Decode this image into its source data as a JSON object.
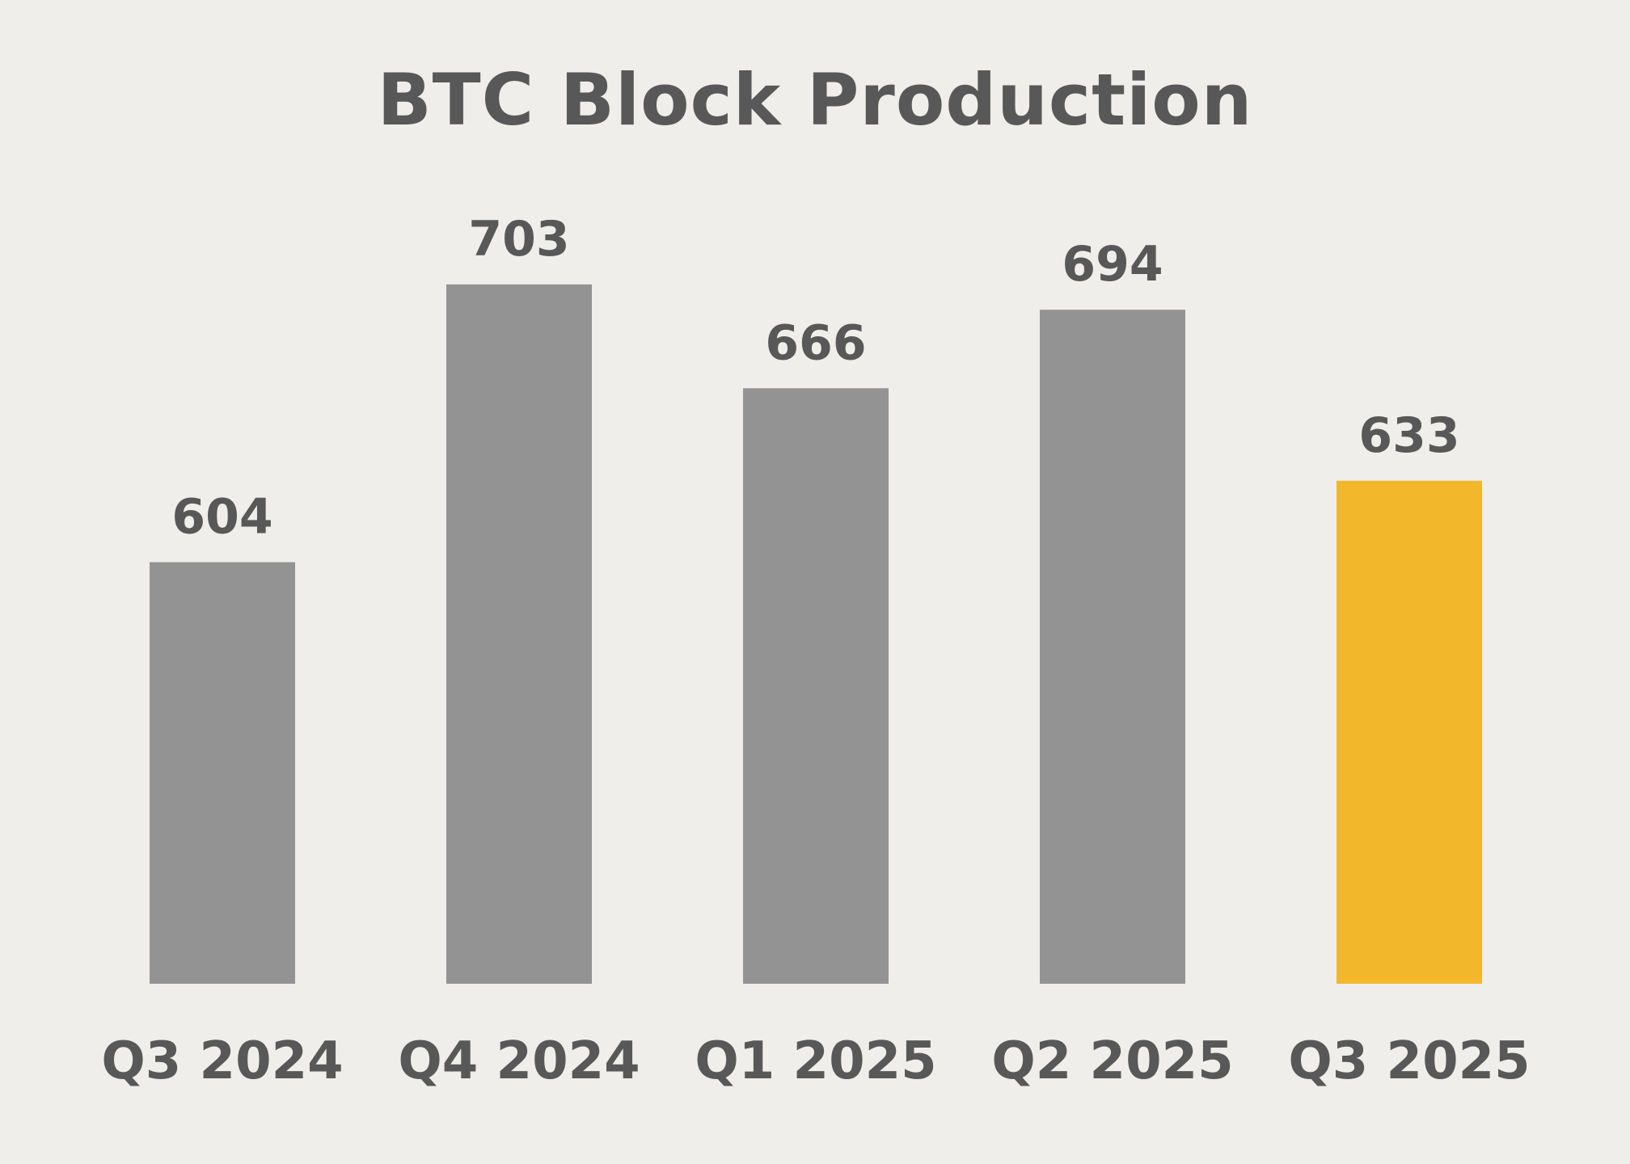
{
  "chart_data": {
    "type": "bar",
    "title": "BTC Block Production",
    "xlabel": "",
    "ylabel": "",
    "categories": [
      "Q3 2024",
      "Q4 2024",
      "Q1 2025",
      "Q2 2025",
      "Q3 2025"
    ],
    "values": [
      604,
      703,
      666,
      694,
      633
    ],
    "data_labels": [
      "604",
      "703",
      "666",
      "694",
      "633"
    ],
    "highlight_index": 4,
    "colors": {
      "bar": "#939393",
      "highlight": "#F2B72B",
      "text": "#585858",
      "background": "#EFEEEA"
    },
    "grid": false,
    "legend": "none"
  }
}
